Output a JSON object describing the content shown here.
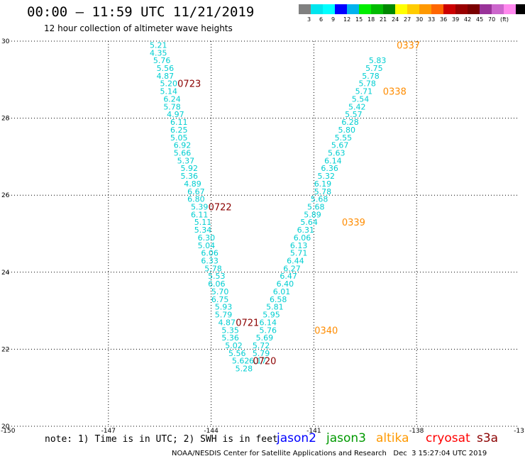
{
  "header": {
    "title": "00:00 – 11:59 UTC 11/21/2019",
    "subtitle": "12 hour collection of altimeter wave heights"
  },
  "colorbar": {
    "colors": [
      "#808080",
      "#00e5ee",
      "#00ffff",
      "#0000ff",
      "#00b2ee",
      "#00ee00",
      "#00bb00",
      "#008800",
      "#ffff00",
      "#ffcc00",
      "#ff9900",
      "#ff6600",
      "#cc0000",
      "#990000",
      "#7a0000",
      "#993399",
      "#cc66cc",
      "#ff88ee",
      "#000000"
    ],
    "labels": [
      "3",
      "6",
      "9",
      "12",
      "15",
      "18",
      "21",
      "24",
      "27",
      "30",
      "33",
      "36",
      "39",
      "42",
      "45",
      "70",
      "(ft)"
    ]
  },
  "chart_data": {
    "type": "scatter",
    "x_ticks": [
      "-150",
      "-147",
      "-144",
      "-141",
      "-138",
      "-13"
    ],
    "y_ticks": [
      "30",
      "28",
      "26",
      "24",
      "22",
      "20"
    ],
    "xlim": [
      -150,
      -135
    ],
    "ylim": [
      20,
      30
    ],
    "grid": true,
    "series": [
      {
        "name": "jason2",
        "color": "#00ced1",
        "points": [
          {
            "lon": -145.54,
            "lat": 29.9,
            "v": "5.21"
          },
          {
            "lon": -145.54,
            "lat": 29.7,
            "v": "4.35"
          },
          {
            "lon": -145.44,
            "lat": 29.5,
            "v": "5.76"
          },
          {
            "lon": -145.34,
            "lat": 29.3,
            "v": "5.56"
          },
          {
            "lon": -145.34,
            "lat": 29.1,
            "v": "4.87"
          },
          {
            "lon": -145.24,
            "lat": 28.9,
            "v": "5.20"
          },
          {
            "lon": -145.24,
            "lat": 28.7,
            "v": "5.14"
          },
          {
            "lon": -145.14,
            "lat": 28.5,
            "v": "6.24"
          },
          {
            "lon": -145.14,
            "lat": 28.3,
            "v": "5.78"
          },
          {
            "lon": -145.04,
            "lat": 28.1,
            "v": "4.97"
          },
          {
            "lon": -144.94,
            "lat": 27.9,
            "v": "6.11"
          },
          {
            "lon": -144.94,
            "lat": 27.7,
            "v": "6.25"
          },
          {
            "lon": -144.94,
            "lat": 27.5,
            "v": "5.05"
          },
          {
            "lon": -144.84,
            "lat": 27.3,
            "v": "6.92"
          },
          {
            "lon": -144.84,
            "lat": 27.1,
            "v": "5.66"
          },
          {
            "lon": -144.74,
            "lat": 26.9,
            "v": "5.37"
          },
          {
            "lon": -144.64,
            "lat": 26.7,
            "v": "5.92"
          },
          {
            "lon": -144.64,
            "lat": 26.5,
            "v": "5.36"
          },
          {
            "lon": -144.54,
            "lat": 26.3,
            "v": "4.89"
          },
          {
            "lon": -144.44,
            "lat": 26.1,
            "v": "6.67"
          },
          {
            "lon": -144.44,
            "lat": 25.9,
            "v": "6.80"
          },
          {
            "lon": -144.34,
            "lat": 25.7,
            "v": "5.39"
          },
          {
            "lon": -144.34,
            "lat": 25.5,
            "v": "6.11"
          },
          {
            "lon": -144.24,
            "lat": 25.3,
            "v": "5.11"
          },
          {
            "lon": -144.24,
            "lat": 25.1,
            "v": "5.34"
          },
          {
            "lon": -144.14,
            "lat": 24.9,
            "v": "6.30"
          },
          {
            "lon": -144.14,
            "lat": 24.7,
            "v": "5.04"
          },
          {
            "lon": -144.04,
            "lat": 24.5,
            "v": "6.06"
          },
          {
            "lon": -144.04,
            "lat": 24.3,
            "v": "6.33"
          },
          {
            "lon": -143.94,
            "lat": 24.1,
            "v": "5.78"
          },
          {
            "lon": -143.84,
            "lat": 23.9,
            "v": "5.53"
          },
          {
            "lon": -143.84,
            "lat": 23.7,
            "v": "6.06"
          },
          {
            "lon": -143.74,
            "lat": 23.5,
            "v": "5.70"
          },
          {
            "lon": -143.74,
            "lat": 23.3,
            "v": "6.75"
          },
          {
            "lon": -143.64,
            "lat": 23.1,
            "v": "5.93"
          },
          {
            "lon": -143.64,
            "lat": 22.9,
            "v": "5.79"
          },
          {
            "lon": -143.54,
            "lat": 22.7,
            "v": "4.87"
          },
          {
            "lon": -143.44,
            "lat": 22.5,
            "v": "5.35"
          },
          {
            "lon": -143.44,
            "lat": 22.3,
            "v": "5.36"
          },
          {
            "lon": -143.34,
            "lat": 22.1,
            "v": "5.02"
          },
          {
            "lon": -143.24,
            "lat": 21.9,
            "v": "5.56"
          },
          {
            "lon": -143.14,
            "lat": 21.7,
            "v": "5.62"
          },
          {
            "lon": -143.04,
            "lat": 21.5,
            "v": "5.28"
          },
          {
            "lon": -142.64,
            "lat": 21.7,
            "v": "6.17"
          },
          {
            "lon": -142.54,
            "lat": 21.9,
            "v": "5.79"
          },
          {
            "lon": -142.54,
            "lat": 22.1,
            "v": "5.72"
          },
          {
            "lon": -142.44,
            "lat": 22.3,
            "v": "5.69"
          },
          {
            "lon": -142.34,
            "lat": 22.5,
            "v": "5.76"
          },
          {
            "lon": -142.34,
            "lat": 22.7,
            "v": "6.14"
          },
          {
            "lon": -142.24,
            "lat": 22.9,
            "v": "5.95"
          },
          {
            "lon": -142.14,
            "lat": 23.1,
            "v": "5.81"
          },
          {
            "lon": -142.04,
            "lat": 23.3,
            "v": "6.58"
          },
          {
            "lon": -141.94,
            "lat": 23.5,
            "v": "6.01"
          },
          {
            "lon": -141.84,
            "lat": 23.7,
            "v": "6.40"
          },
          {
            "lon": -141.74,
            "lat": 23.9,
            "v": "6.47"
          },
          {
            "lon": -141.64,
            "lat": 24.1,
            "v": "6.27"
          },
          {
            "lon": -141.54,
            "lat": 24.3,
            "v": "6.44"
          },
          {
            "lon": -141.44,
            "lat": 24.5,
            "v": "5.71"
          },
          {
            "lon": -141.44,
            "lat": 24.7,
            "v": "6.13"
          },
          {
            "lon": -141.34,
            "lat": 24.9,
            "v": "6.06"
          },
          {
            "lon": -141.24,
            "lat": 25.1,
            "v": "6.31"
          },
          {
            "lon": -141.14,
            "lat": 25.3,
            "v": "5.64"
          },
          {
            "lon": -141.04,
            "lat": 25.5,
            "v": "5.89"
          },
          {
            "lon": -140.94,
            "lat": 25.7,
            "v": "5.68"
          },
          {
            "lon": -140.84,
            "lat": 25.9,
            "v": "5.68"
          },
          {
            "lon": -140.74,
            "lat": 26.1,
            "v": "5.78"
          },
          {
            "lon": -140.74,
            "lat": 26.3,
            "v": "6.19"
          },
          {
            "lon": -140.64,
            "lat": 26.5,
            "v": "5.32"
          },
          {
            "lon": -140.54,
            "lat": 26.7,
            "v": "6.36"
          },
          {
            "lon": -140.44,
            "lat": 26.9,
            "v": "6.14"
          },
          {
            "lon": -140.34,
            "lat": 27.1,
            "v": "5.63"
          },
          {
            "lon": -140.24,
            "lat": 27.3,
            "v": "5.67"
          },
          {
            "lon": -140.14,
            "lat": 27.5,
            "v": "5.55"
          },
          {
            "lon": -140.04,
            "lat": 27.7,
            "v": "5.80"
          },
          {
            "lon": -139.94,
            "lat": 27.9,
            "v": "6.28"
          },
          {
            "lon": -139.84,
            "lat": 28.1,
            "v": "5.57"
          },
          {
            "lon": -139.74,
            "lat": 28.3,
            "v": "5.42"
          },
          {
            "lon": -139.64,
            "lat": 28.5,
            "v": "5.54"
          },
          {
            "lon": -139.54,
            "lat": 28.7,
            "v": "5.71"
          },
          {
            "lon": -139.44,
            "lat": 28.9,
            "v": "5.78"
          },
          {
            "lon": -139.34,
            "lat": 29.1,
            "v": "5.78"
          },
          {
            "lon": -139.24,
            "lat": 29.3,
            "v": "5.75"
          },
          {
            "lon": -139.14,
            "lat": 29.5,
            "v": "5.83"
          }
        ]
      }
    ],
    "time_labels": [
      {
        "text": "0723",
        "color": "#8b0000",
        "lon": -144.64,
        "lat": 28.9
      },
      {
        "text": "0722",
        "color": "#8b0000",
        "lon": -143.74,
        "lat": 25.7
      },
      {
        "text": "0721",
        "color": "#8b0000",
        "lon": -142.94,
        "lat": 22.7
      },
      {
        "text": "0720",
        "color": "#8b0000",
        "lon": -142.44,
        "lat": 21.7
      },
      {
        "text": "0337",
        "color": "#ff8c00",
        "lon": -138.24,
        "lat": 29.9
      },
      {
        "text": "0338",
        "color": "#ff8c00",
        "lon": -138.64,
        "lat": 28.7
      },
      {
        "text": "0339",
        "color": "#ff8c00",
        "lon": -139.84,
        "lat": 25.3
      },
      {
        "text": "0340",
        "color": "#ff8c00",
        "lon": -140.64,
        "lat": 22.5
      }
    ]
  },
  "note": {
    "text": "note: 1) Time is in UTC; 2) SWH is in feet"
  },
  "legend": [
    {
      "label": "jason2",
      "color": "#0000ff"
    },
    {
      "label": "jason3",
      "color": "#009900"
    },
    {
      "label": "altika",
      "color": "#ff9900"
    },
    {
      "label": "cryosat",
      "color": "#ff0000"
    },
    {
      "label": "s3a",
      "color": "#8b0000"
    }
  ],
  "footer": {
    "credit": "NOAA/NESDIS Center for Satellite Applications and Research",
    "timestamp": "Dec  3 15:27:04 UTC 2019"
  }
}
